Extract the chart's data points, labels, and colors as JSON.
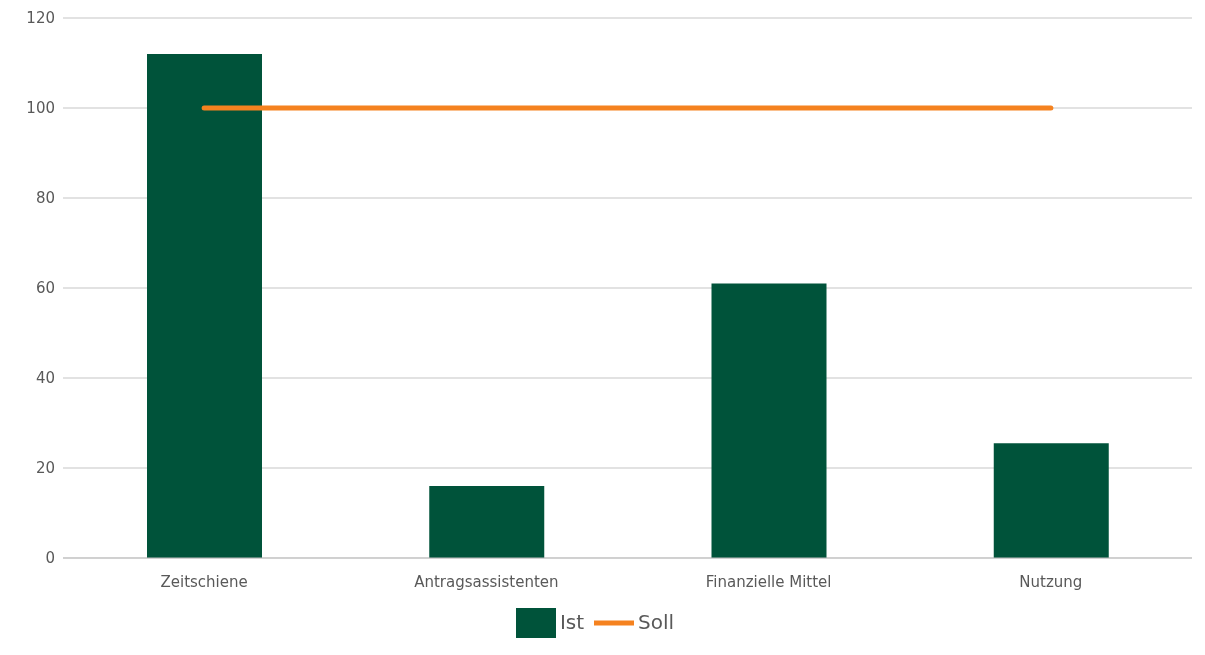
{
  "chart_data": {
    "type": "bar",
    "categories": [
      "Zeitschiene",
      "Antragsassistenten",
      "Finanzielle Mittel",
      "Nutzung"
    ],
    "series": [
      {
        "name": "Ist",
        "color": "#00533a",
        "values": [
          112,
          16,
          61,
          25.5
        ]
      },
      {
        "name": "Soll",
        "type": "line",
        "color": "#f5821f",
        "values": [
          100,
          100,
          100,
          100
        ]
      }
    ],
    "ylim": [
      0,
      120
    ],
    "yticks": [
      0,
      20,
      40,
      60,
      80,
      100,
      120
    ],
    "grid": "y",
    "legend": "bottom",
    "marker": "none"
  }
}
